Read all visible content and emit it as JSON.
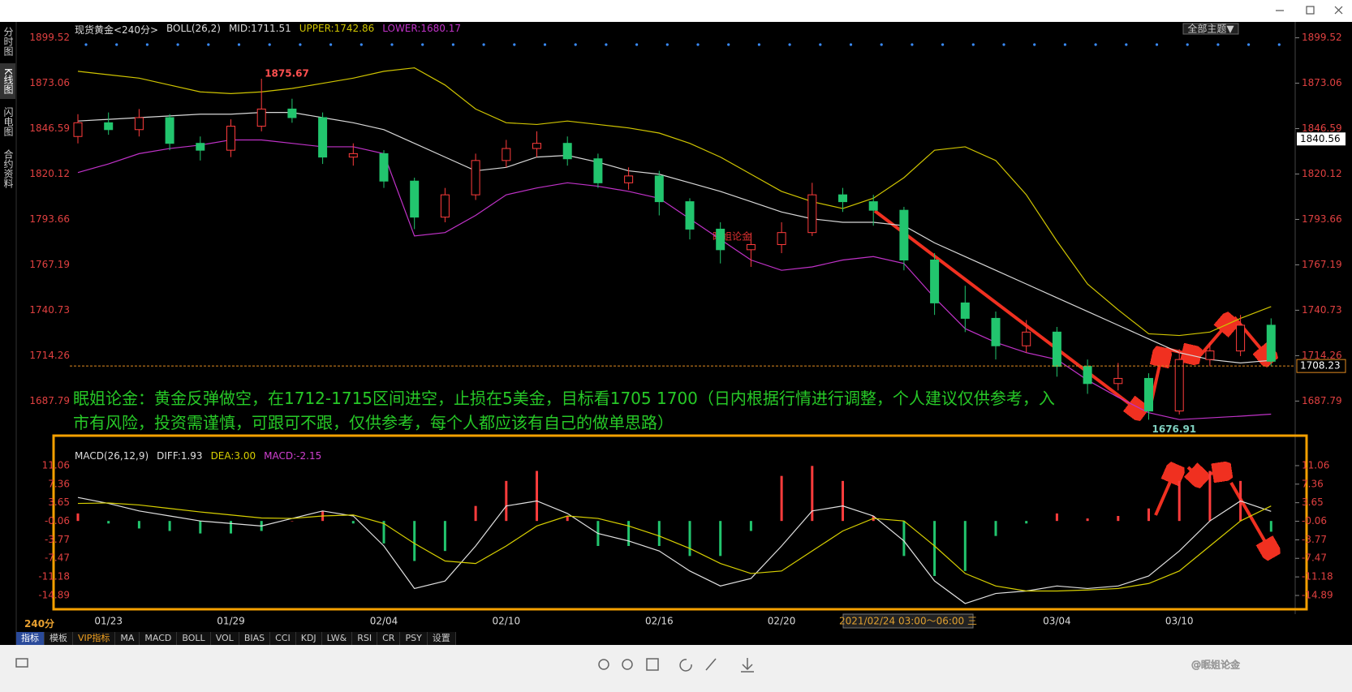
{
  "window": {
    "sidebar_tabs": [
      "分时图",
      "K线图",
      "闪电图",
      "合约资料"
    ],
    "theme_button": "全部主题▼"
  },
  "annotation": "眠姐论金：黄金反弹做空，在1712-1715区间进空，止损在5美金，目标看1705   1700（日内根据行情进行调整，个人建议仅供参考，入市有风险，投资需谨慎，可跟可不跟，仅供参考，每个人都应该有自己的做单思路）",
  "watermark": "眠姐论金",
  "crosshair_time": "2021/02/24 03:00～06:00 三",
  "bottom": {
    "period": "240分",
    "tabs": [
      "指标",
      "模板",
      "VIP指标",
      "MA",
      "MACD",
      "BOLL",
      "VOL",
      "BIAS",
      "CCI",
      "KDJ",
      "LW&",
      "RSI",
      "CR",
      "PSY",
      "设置"
    ],
    "brand": "@眠姐论金"
  },
  "chart_data": [
    {
      "type": "candlestick",
      "title": "现货黄金<240分>",
      "indicator": "BOLL(26,2)",
      "categories": [
        null,
        "01/23",
        null,
        null,
        null,
        "01/29",
        null,
        null,
        null,
        null,
        "02/04",
        null,
        null,
        null,
        "02/10",
        null,
        null,
        null,
        null,
        "02/16",
        null,
        null,
        null,
        "02/20",
        null,
        null,
        null,
        null,
        null,
        null,
        null,
        null,
        "03/04",
        null,
        null,
        null,
        "03/10",
        null,
        null,
        null
      ],
      "open": [
        1842,
        1850,
        1846,
        1853,
        1838,
        1834,
        1848,
        1858,
        1853,
        1830,
        1832,
        1816,
        1795,
        1808,
        1828,
        1835,
        1838,
        1829,
        1815,
        1819,
        1804,
        1788,
        1776,
        1779,
        1786,
        1808,
        1804,
        1799,
        1770,
        1745,
        1736,
        1720,
        1728,
        1708,
        1698,
        1701,
        1682,
        1712,
        1717,
        1732
      ],
      "high": [
        1855,
        1856,
        1858,
        1855,
        1842,
        1852,
        1875.67,
        1864,
        1856,
        1838,
        1834,
        1818,
        1812,
        1832,
        1840,
        1845,
        1842,
        1832,
        1824,
        1822,
        1806,
        1792,
        1786,
        1792,
        1815,
        1812,
        1808,
        1801,
        1774,
        1755,
        1740,
        1735,
        1731,
        1712,
        1710,
        1704,
        1718,
        1722,
        1738,
        1736
      ],
      "low": [
        1838,
        1843,
        1842,
        1834,
        1828,
        1830,
        1845,
        1850,
        1826,
        1825,
        1812,
        1788,
        1792,
        1805,
        1824,
        1830,
        1825,
        1812,
        1811,
        1796,
        1782,
        1768,
        1766,
        1774,
        1784,
        1798,
        1790,
        1764,
        1738,
        1728,
        1712,
        1716,
        1702,
        1692,
        1694,
        1676.91,
        1680,
        1708,
        1714,
        1708
      ],
      "close": [
        1850,
        1846,
        1853,
        1838,
        1834,
        1848,
        1858,
        1853,
        1830,
        1832,
        1816,
        1795,
        1808,
        1828,
        1835,
        1838,
        1829,
        1815,
        1819,
        1804,
        1788,
        1776,
        1779,
        1786,
        1808,
        1804,
        1799,
        1770,
        1745,
        1736,
        1720,
        1728,
        1708,
        1698,
        1701,
        1682,
        1712,
        1717,
        1732,
        1711
      ],
      "up_color": "#ff3c3c",
      "down_color": "#22c56e",
      "series": [
        {
          "name": "MID",
          "legend_label": "MID:1711.51",
          "color": "#d8d8d8",
          "values": [
            1851,
            1852,
            1853,
            1854,
            1855,
            1855,
            1856,
            1856,
            1853,
            1850,
            1846,
            1838,
            1830,
            1822,
            1824,
            1830,
            1831,
            1827,
            1822,
            1820,
            1815,
            1810,
            1804,
            1798,
            1794,
            1792,
            1792,
            1790,
            1780,
            1772,
            1764,
            1756,
            1748,
            1740,
            1732,
            1724,
            1716,
            1712,
            1710,
            1711.51
          ]
        },
        {
          "name": "UPPER",
          "legend_label": "UPPER:1742.86",
          "color": "#cfc400",
          "values": [
            1880,
            1878,
            1876,
            1872,
            1868,
            1867,
            1868,
            1870,
            1873,
            1876,
            1880,
            1882,
            1872,
            1858,
            1850,
            1849,
            1851,
            1849,
            1847,
            1844,
            1838,
            1830,
            1820,
            1810,
            1804,
            1800,
            1806,
            1818,
            1834,
            1836,
            1828,
            1808,
            1781,
            1756,
            1741,
            1727,
            1726,
            1728,
            1736,
            1742.86
          ]
        },
        {
          "name": "LOWER",
          "legend_label": "LOWER:1680.17",
          "color": "#c032c8",
          "values": [
            1821,
            1826,
            1832,
            1835,
            1837,
            1840,
            1840,
            1838,
            1836,
            1836,
            1832,
            1784,
            1786,
            1796,
            1808,
            1812,
            1815,
            1813,
            1810,
            1806,
            1794,
            1782,
            1770,
            1764,
            1766,
            1770,
            1772,
            1768,
            1748,
            1730,
            1722,
            1716,
            1712,
            1700,
            1690,
            1681,
            1677,
            1678,
            1679,
            1680.17
          ]
        }
      ],
      "ylim": [
        1670,
        1905
      ],
      "yticks": [
        1899.52,
        1873.06,
        1846.59,
        1820.12,
        1793.66,
        1767.19,
        1740.73,
        1714.26,
        1687.79
      ],
      "price_line": 1708.23,
      "cursor_price": 1840.56,
      "tick_color": "#e04040"
    },
    {
      "type": "macd",
      "title": "MACD(26,12,9)",
      "hist_label": "MACD:-2.15",
      "hist_label_color": "#d040d0",
      "histogram": [
        1.5,
        -0.5,
        -1.5,
        -2,
        -2.5,
        -2.5,
        -2,
        0,
        2,
        -0.5,
        -4.5,
        -8,
        -6,
        3,
        8,
        10,
        1,
        -5,
        -5,
        -5,
        -7,
        -7,
        -2,
        9,
        11,
        8,
        1,
        -7,
        -11,
        -10,
        -3,
        -0.5,
        1.5,
        0.5,
        1,
        2.5,
        8,
        10,
        8,
        -2.15
      ],
      "up_color": "#ff3c3c",
      "down_color": "#22c56e",
      "series": [
        {
          "name": "DIFF",
          "legend_label": "DIFF:1.93",
          "color": "#e0e0e0",
          "values": [
            4.7,
            3.5,
            2.0,
            1.0,
            0.0,
            -0.5,
            -1.0,
            0.5,
            2.0,
            1.0,
            -5.0,
            -13.5,
            -12.0,
            -5.0,
            3.0,
            4.0,
            1.5,
            -2.5,
            -4.0,
            -6.0,
            -10.0,
            -13.0,
            -11.5,
            -5.0,
            2.0,
            3.0,
            1.0,
            -4.0,
            -12.0,
            -16.5,
            -14.5,
            -14.0,
            -13.0,
            -13.5,
            -13.0,
            -11.0,
            -6.0,
            0.0,
            4.0,
            1.93
          ]
        },
        {
          "name": "DEA",
          "legend_label": "DEA:3.00",
          "color": "#d8d000",
          "values": [
            3.5,
            3.6,
            3.2,
            2.5,
            1.8,
            1.2,
            0.6,
            0.5,
            1.0,
            1.2,
            -0.5,
            -4.5,
            -8.0,
            -8.5,
            -5.0,
            -1.0,
            1.0,
            0.5,
            -1.0,
            -3.0,
            -5.5,
            -8.5,
            -10.5,
            -10.0,
            -6.0,
            -2.0,
            0.5,
            0.0,
            -5.0,
            -10.5,
            -13.0,
            -14.0,
            -14.0,
            -13.8,
            -13.5,
            -12.5,
            -10.0,
            -5.0,
            0.0,
            3.0
          ]
        }
      ],
      "ylim": [
        -17,
        13
      ],
      "yticks": [
        11.06,
        7.36,
        3.65,
        -0.06,
        -3.77,
        -7.47,
        -11.18,
        -14.89
      ],
      "tick_color": "#e04040"
    }
  ]
}
